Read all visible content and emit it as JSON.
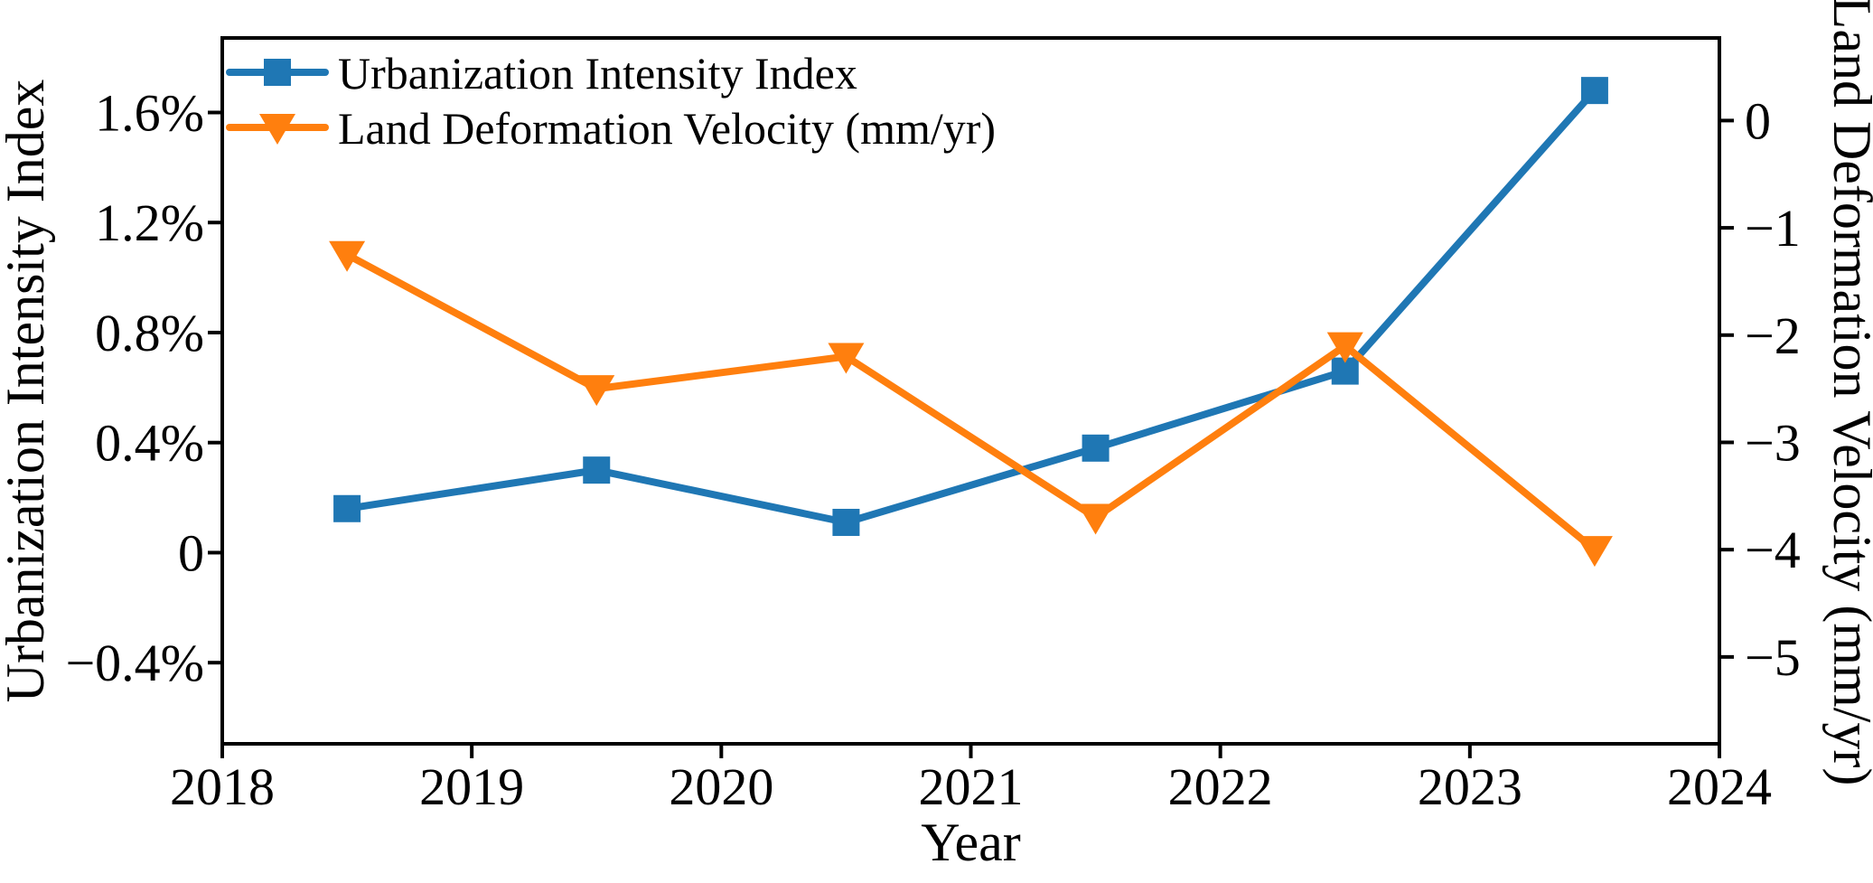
{
  "chart_data": {
    "type": "line",
    "title": "",
    "xlabel": "Year",
    "background": "#ffffff",
    "axis_color": "#000000",
    "grid": false,
    "x": [
      2018.5,
      2019.5,
      2020.5,
      2021.5,
      2022.5,
      2023.5
    ],
    "series": [
      {
        "name": "Urbanization Intensity Index",
        "axis": "left",
        "color": "#1f77b4",
        "marker": "square",
        "unit": "%",
        "values": [
          0.16,
          0.3,
          0.11,
          0.38,
          0.66,
          1.68
        ]
      },
      {
        "name": "Land Deformation Velocity (mm/yr)",
        "axis": "right",
        "color": "#ff7f0e",
        "marker": "triangle-down",
        "unit": "mm/yr",
        "values": [
          -1.25,
          -2.5,
          -2.2,
          -3.7,
          -2.1,
          -4.0
        ]
      }
    ],
    "x_axis": {
      "label": "Year",
      "lim": [
        2018,
        2024
      ],
      "ticks": [
        2018,
        2019,
        2020,
        2021,
        2022,
        2023,
        2024
      ],
      "tick_labels": [
        "2018",
        "2019",
        "2020",
        "2021",
        "2022",
        "2023",
        "2024"
      ]
    },
    "left_axis": {
      "label": "Urbanization Intensity Index",
      "lim": [
        -0.695,
        1.871
      ],
      "ticks": [
        1.6,
        1.2,
        0.8,
        0.4,
        0,
        -0.4
      ],
      "tick_labels": [
        "1.6%",
        "1.2%",
        "0.8%",
        "0.4%",
        "0",
        "−0.4%"
      ]
    },
    "right_axis": {
      "label": "Land Deformation Velocity (mm/yr)",
      "lim": [
        -5.81,
        0.77
      ],
      "ticks": [
        0,
        -1,
        -2,
        -3,
        -4,
        -5
      ],
      "tick_labels": [
        "0",
        "−1",
        "−2",
        "−3",
        "−4",
        "−5"
      ]
    },
    "legend": {
      "position": "upper-left",
      "frame": false,
      "entries": [
        "Urbanization Intensity Index",
        "Land Deformation Velocity (mm/yr)"
      ]
    }
  }
}
